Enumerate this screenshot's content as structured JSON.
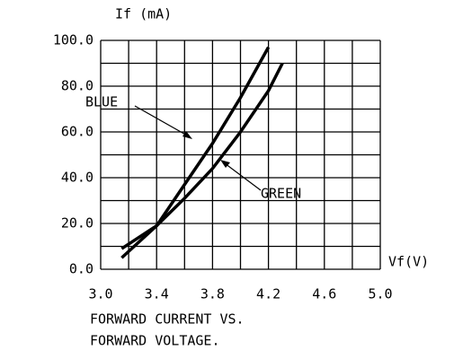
{
  "chart_data": {
    "type": "line",
    "title_lines": [
      "FORWARD CURRENT VS.",
      "FORWARD VOLTAGE."
    ],
    "y_label": "If (mA)",
    "x_label": "Vf(V)",
    "series": [
      {
        "name": "BLUE",
        "color": "#000000",
        "x": [
          3.15,
          3.4,
          3.6,
          3.8,
          4.0,
          4.2
        ],
        "values": [
          5,
          19,
          37,
          55,
          75,
          97
        ]
      },
      {
        "name": "GREEN",
        "color": "#000000",
        "x": [
          3.15,
          3.4,
          3.6,
          3.8,
          4.0,
          4.2,
          4.3
        ],
        "values": [
          9,
          19,
          31,
          44,
          60,
          78,
          90
        ]
      }
    ],
    "xlim": [
      3.0,
      5.0
    ],
    "xticks": [
      {
        "value": 3.0,
        "label": "3.0"
      },
      3.4,
      3.8,
      4.2,
      4.6,
      {
        "value": 5.0,
        "label": "5.0"
      }
    ],
    "xminor": [
      3.2,
      3.6,
      4.0,
      4.4,
      4.8
    ],
    "ylim": [
      0,
      100
    ],
    "yticks": [
      {
        "value": 0,
        "label": "0.0"
      },
      {
        "value": 20,
        "label": "20.0"
      },
      {
        "value": 40,
        "label": "40.0"
      },
      {
        "value": 60,
        "label": "60.0"
      },
      {
        "value": 80,
        "label": "80.0"
      },
      {
        "value": 100,
        "label": "100.0"
      }
    ],
    "yminor": [
      10,
      30,
      50,
      70,
      90
    ],
    "grid": true
  }
}
